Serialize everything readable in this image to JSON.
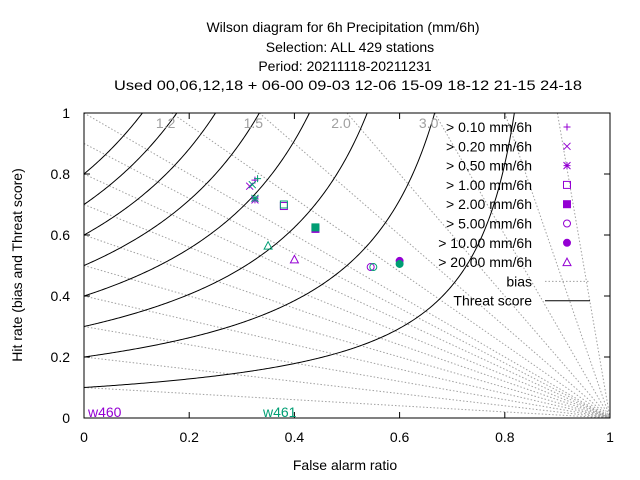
{
  "title_lines": [
    "Wilson diagram  for 6h Precipitation (mm/6h)",
    "Selection: ALL     429 stations",
    "Period: 20211118-20211231",
    "Used  00,06,12,18  + 06-00  09-03  12-06  15-09  18-12  21-15  24-18"
  ],
  "chart_data": {
    "type": "scatter",
    "xlabel": "False alarm ratio",
    "ylabel": "Hit rate (bias and Threat score)",
    "xlim": [
      0,
      1
    ],
    "ylim": [
      0,
      1
    ],
    "x_ticks": [
      "0",
      "0.2",
      "0.4",
      "0.6",
      "0.8",
      "1"
    ],
    "y_ticks": [
      "0",
      "0.2",
      "0.4",
      "0.6",
      "0.8",
      "1"
    ],
    "bias_lines": [
      0.1,
      0.2,
      0.3,
      0.4,
      0.5,
      0.6,
      0.7,
      0.8,
      0.9,
      1.0,
      1.2,
      1.5,
      2.0,
      3.0,
      5.0,
      10.0
    ],
    "bias_labels": [
      "1.2",
      "1.5",
      "2.0",
      "3.0"
    ],
    "threat_score_lines": [
      0.1,
      0.2,
      0.3,
      0.4,
      0.5,
      0.6,
      0.7,
      0.8
    ],
    "legend_position": "top-right",
    "legend": [
      {
        "label": "> 0.10 mm/6h",
        "marker": "plus"
      },
      {
        "label": "> 0.20 mm/6h",
        "marker": "cross"
      },
      {
        "label": "> 0.50 mm/6h",
        "marker": "star"
      },
      {
        "label": "> 1.00 mm/6h",
        "marker": "open-square"
      },
      {
        "label": "> 2.00 mm/6h",
        "marker": "filled-square"
      },
      {
        "label": "> 5.00 mm/6h",
        "marker": "open-circle"
      },
      {
        "label": "> 10.00 mm/6h",
        "marker": "filled-circle"
      },
      {
        "label": "> 20.00 mm/6h",
        "marker": "open-triangle"
      },
      {
        "label": "bias",
        "marker": "dotted-line"
      },
      {
        "label": "Threat score",
        "marker": "solid-line"
      }
    ],
    "series": [
      {
        "name": "w460",
        "color": "#9400d3",
        "points": [
          {
            "x": 0.325,
            "y": 0.78,
            "marker": "plus"
          },
          {
            "x": 0.315,
            "y": 0.76,
            "marker": "cross"
          },
          {
            "x": 0.325,
            "y": 0.715,
            "marker": "star"
          },
          {
            "x": 0.38,
            "y": 0.695,
            "marker": "open-square"
          },
          {
            "x": 0.44,
            "y": 0.62,
            "marker": "filled-square"
          },
          {
            "x": 0.545,
            "y": 0.495,
            "marker": "open-circle"
          },
          {
            "x": 0.6,
            "y": 0.515,
            "marker": "filled-circle"
          },
          {
            "x": 0.4,
            "y": 0.52,
            "marker": "open-triangle"
          }
        ]
      },
      {
        "name": "w461",
        "color": "#009e73",
        "points": [
          {
            "x": 0.33,
            "y": 0.785,
            "marker": "plus"
          },
          {
            "x": 0.32,
            "y": 0.765,
            "marker": "cross"
          },
          {
            "x": 0.325,
            "y": 0.72,
            "marker": "star"
          },
          {
            "x": 0.38,
            "y": 0.7,
            "marker": "open-square"
          },
          {
            "x": 0.44,
            "y": 0.625,
            "marker": "filled-square"
          },
          {
            "x": 0.55,
            "y": 0.495,
            "marker": "open-circle"
          },
          {
            "x": 0.6,
            "y": 0.505,
            "marker": "filled-circle"
          },
          {
            "x": 0.35,
            "y": 0.565,
            "marker": "open-triangle"
          }
        ]
      }
    ],
    "legend_marker_color": "#9400d3",
    "grid": false
  }
}
